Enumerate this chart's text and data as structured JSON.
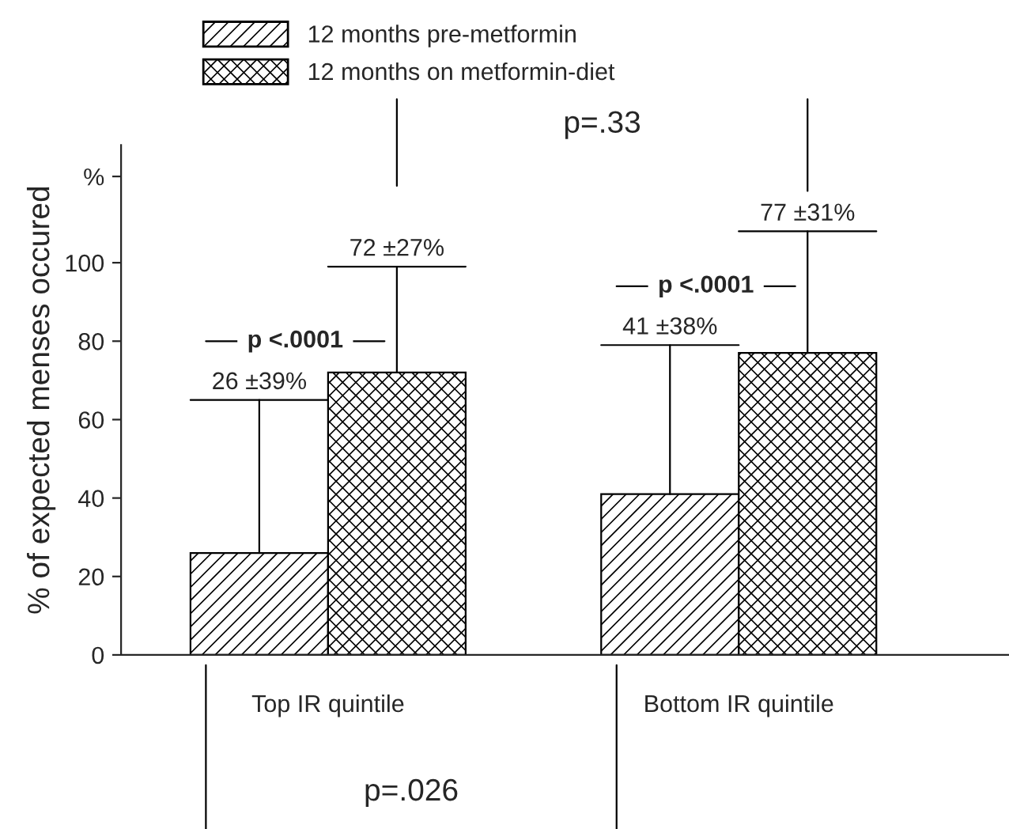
{
  "chart_data": {
    "type": "bar",
    "ylabel": "% of expected menses occured",
    "categories": [
      "Top IR quintile",
      "Bottom IR quintile"
    ],
    "series": [
      {
        "name": "12 months pre-metformin",
        "color": "#000000",
        "values": [
          26,
          41
        ],
        "errors": [
          [
            26,
            65
          ],
          [
            41,
            79
          ]
        ]
      },
      {
        "name": "12 months on metformin-diet",
        "color": "#000000",
        "values": [
          72,
          77
        ],
        "errors": [
          [
            72,
            99
          ],
          [
            77,
            108
          ]
        ]
      }
    ],
    "ylim": [
      0,
      130
    ],
    "yticks": [
      0,
      20,
      40,
      60,
      80,
      100,
      {
        "value": 122,
        "label": "%"
      }
    ],
    "annotations": [
      "26 ±39%",
      "41 ±38%",
      "72 ±27%",
      "77 ±31%",
      "p <.0001",
      "p <.0001",
      "p=.33",
      "p=.026"
    ],
    "legend": "top left",
    "grid": false
  }
}
